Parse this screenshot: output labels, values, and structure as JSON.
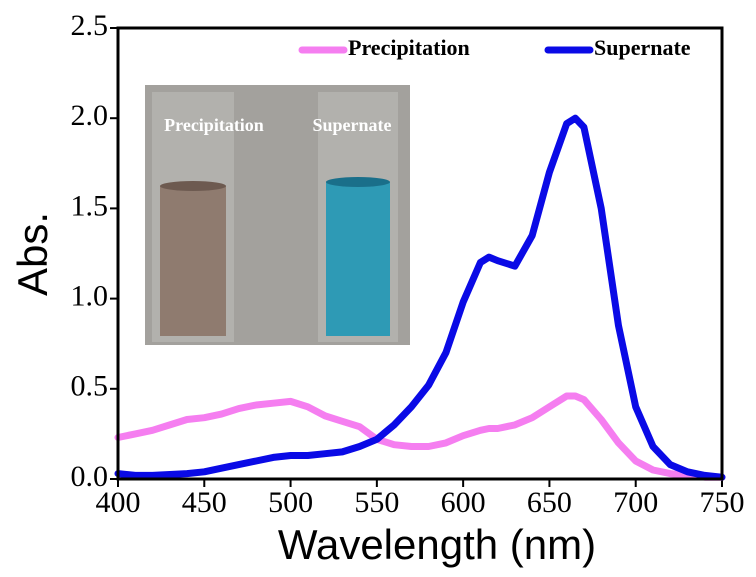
{
  "chart_data": {
    "type": "line",
    "x_label": "Wavelength (nm)",
    "y_label": "Abs.",
    "x": [
      400,
      410,
      420,
      430,
      440,
      450,
      460,
      470,
      480,
      490,
      500,
      510,
      520,
      530,
      540,
      550,
      560,
      570,
      580,
      590,
      600,
      610,
      615,
      620,
      630,
      640,
      650,
      660,
      665,
      670,
      680,
      690,
      700,
      710,
      720,
      730,
      740,
      750
    ],
    "series": [
      {
        "name": "Precipitation",
        "color": "#f57ef0",
        "values": [
          0.23,
          0.25,
          0.27,
          0.3,
          0.33,
          0.34,
          0.36,
          0.39,
          0.41,
          0.42,
          0.43,
          0.4,
          0.35,
          0.32,
          0.29,
          0.22,
          0.19,
          0.18,
          0.18,
          0.2,
          0.24,
          0.27,
          0.28,
          0.28,
          0.3,
          0.34,
          0.4,
          0.46,
          0.46,
          0.44,
          0.33,
          0.2,
          0.1,
          0.05,
          0.03,
          0.02,
          0.01,
          0.01
        ]
      },
      {
        "name": "Supernate",
        "color": "#0a0ae6",
        "values": [
          0.03,
          0.02,
          0.02,
          0.025,
          0.03,
          0.04,
          0.06,
          0.08,
          0.1,
          0.12,
          0.13,
          0.13,
          0.14,
          0.15,
          0.18,
          0.22,
          0.3,
          0.4,
          0.52,
          0.7,
          0.98,
          1.2,
          1.23,
          1.21,
          1.18,
          1.35,
          1.7,
          1.97,
          2.0,
          1.95,
          1.5,
          0.85,
          0.4,
          0.18,
          0.08,
          0.04,
          0.02,
          0.01
        ]
      }
    ],
    "xlim": [
      400,
      750
    ],
    "xticks": [
      400,
      450,
      500,
      550,
      600,
      650,
      700,
      750
    ],
    "ylim": [
      0,
      2.5
    ],
    "yticks": [
      {
        "value": 0,
        "label": "0.0"
      },
      0.5,
      {
        "value": 1,
        "label": "1.0"
      },
      1.5,
      {
        "value": 2,
        "label": "2.0"
      },
      2.5
    ],
    "legend": "top-right",
    "inset_labels": [
      "Precipitation",
      "Supernate"
    ]
  }
}
